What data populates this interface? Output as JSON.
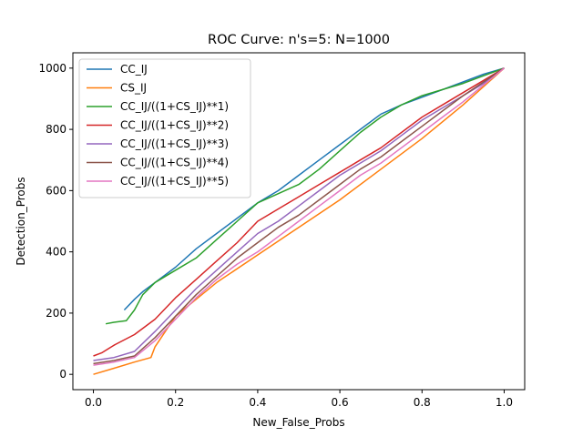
{
  "chart_data": {
    "type": "line",
    "title": "ROC Curve: n's=5: N=1000",
    "xlabel": "New_False_Probs",
    "ylabel": "Detection_Probs",
    "xlim": [
      -0.05,
      1.05
    ],
    "ylim": [
      -50,
      1050
    ],
    "xticks": [
      0.0,
      0.2,
      0.4,
      0.6,
      0.8,
      1.0
    ],
    "xtick_labels": [
      "0.0",
      "0.2",
      "0.4",
      "0.6",
      "0.8",
      "1.0"
    ],
    "yticks": [
      0,
      200,
      400,
      600,
      800,
      1000
    ],
    "ytick_labels": [
      "0",
      "200",
      "400",
      "600",
      "800",
      "1000"
    ],
    "grid": false,
    "legend_position": "top-left",
    "series": [
      {
        "name": "CC_IJ",
        "color": "#1f77b4",
        "x": [
          0.075,
          0.1,
          0.12,
          0.15,
          0.2,
          0.25,
          0.3,
          0.35,
          0.4,
          0.45,
          0.5,
          0.55,
          0.6,
          0.65,
          0.7,
          0.75,
          0.8,
          0.85,
          0.9,
          0.95,
          1.0
        ],
        "y": [
          210,
          245,
          270,
          300,
          350,
          410,
          460,
          510,
          560,
          600,
          650,
          700,
          750,
          800,
          850,
          880,
          905,
          930,
          955,
          980,
          1000
        ]
      },
      {
        "name": "CS_IJ",
        "color": "#ff7f0e",
        "x": [
          0.0,
          0.05,
          0.1,
          0.14,
          0.15,
          0.2,
          0.3,
          0.4,
          0.5,
          0.6,
          0.7,
          0.8,
          0.9,
          1.0
        ],
        "y": [
          0,
          20,
          40,
          55,
          90,
          190,
          300,
          390,
          480,
          570,
          670,
          770,
          880,
          1000
        ]
      },
      {
        "name": "CC_IJ/((1+CS_IJ)**1)",
        "color": "#2ca02c",
        "x": [
          0.03,
          0.05,
          0.08,
          0.1,
          0.12,
          0.15,
          0.2,
          0.25,
          0.3,
          0.35,
          0.4,
          0.45,
          0.5,
          0.55,
          0.6,
          0.65,
          0.7,
          0.75,
          0.8,
          0.85,
          0.9,
          0.95,
          1.0
        ],
        "y": [
          165,
          170,
          175,
          210,
          260,
          300,
          340,
          380,
          440,
          500,
          560,
          590,
          620,
          670,
          730,
          790,
          840,
          880,
          910,
          930,
          950,
          975,
          1000
        ]
      },
      {
        "name": "CC_IJ/((1+CS_IJ)**2)",
        "color": "#d62728",
        "x": [
          0.0,
          0.02,
          0.05,
          0.1,
          0.15,
          0.2,
          0.25,
          0.3,
          0.35,
          0.4,
          0.45,
          0.5,
          0.55,
          0.6,
          0.65,
          0.7,
          0.75,
          0.8,
          0.85,
          0.9,
          0.95,
          1.0
        ],
        "y": [
          60,
          70,
          95,
          130,
          180,
          250,
          310,
          370,
          430,
          500,
          540,
          580,
          620,
          660,
          700,
          740,
          790,
          840,
          880,
          920,
          960,
          1000
        ]
      },
      {
        "name": "CC_IJ/((1+CS_IJ)**3)",
        "color": "#9467bd",
        "x": [
          0.0,
          0.05,
          0.1,
          0.15,
          0.2,
          0.25,
          0.3,
          0.35,
          0.4,
          0.45,
          0.5,
          0.55,
          0.6,
          0.65,
          0.7,
          0.75,
          0.8,
          0.85,
          0.9,
          0.95,
          1.0
        ],
        "y": [
          45,
          55,
          75,
          140,
          210,
          280,
          340,
          400,
          460,
          500,
          550,
          600,
          650,
          690,
          730,
          780,
          830,
          870,
          910,
          950,
          1000
        ]
      },
      {
        "name": "CC_IJ/((1+CS_IJ)**4)",
        "color": "#8c564b",
        "x": [
          0.0,
          0.05,
          0.1,
          0.15,
          0.2,
          0.25,
          0.3,
          0.35,
          0.4,
          0.45,
          0.5,
          0.55,
          0.6,
          0.65,
          0.7,
          0.75,
          0.8,
          0.85,
          0.9,
          0.95,
          1.0
        ],
        "y": [
          35,
          45,
          60,
          120,
          190,
          260,
          320,
          380,
          430,
          480,
          520,
          570,
          620,
          670,
          710,
          760,
          810,
          860,
          910,
          955,
          1000
        ]
      },
      {
        "name": "CC_IJ/((1+CS_IJ)**5)",
        "color": "#e377c2",
        "x": [
          0.0,
          0.05,
          0.1,
          0.15,
          0.2,
          0.25,
          0.3,
          0.35,
          0.4,
          0.45,
          0.5,
          0.55,
          0.6,
          0.65,
          0.7,
          0.75,
          0.8,
          0.85,
          0.9,
          0.95,
          1.0
        ],
        "y": [
          30,
          40,
          55,
          110,
          180,
          250,
          310,
          360,
          400,
          450,
          500,
          550,
          600,
          650,
          690,
          740,
          790,
          840,
          890,
          945,
          1000
        ]
      }
    ]
  }
}
